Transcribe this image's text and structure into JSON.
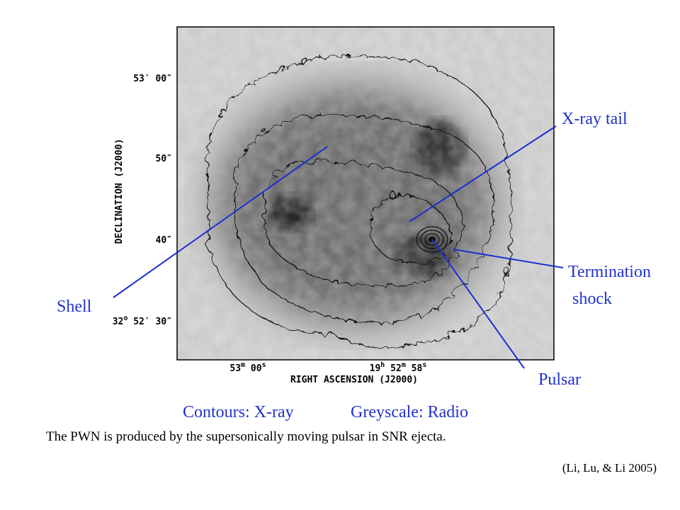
{
  "figure": {
    "dec_label": "DECLINATION (J2000)",
    "ra_label": "RIGHT ASCENSION (J2000)",
    "dec_ticks": [
      {
        "parts": [
          "53′ 00″"
        ]
      },
      {
        "parts": [
          "50″"
        ]
      },
      {
        "parts": [
          "40″"
        ]
      },
      {
        "parts": [
          "32",
          "o",
          " 52′ 30″"
        ]
      }
    ],
    "ra_ticks": [
      {
        "parts": [
          "53",
          "m",
          " 00",
          "s"
        ]
      },
      {
        "parts": [
          "19",
          "h",
          " 52",
          "m",
          " 58",
          "s"
        ]
      }
    ]
  },
  "annotations": {
    "xray_tail": "X-ray tail",
    "termination": "Termination",
    "shock": "shock",
    "shell": "Shell",
    "pulsar": "Pulsar"
  },
  "caption": {
    "contours": "Contours: X-ray",
    "greyscale": "Greyscale: Radio",
    "sentence": "The PWN is produced by the supersonically moving pulsar in SNR ejecta.",
    "citation": "(Li, Lu, & Li 2005)"
  }
}
